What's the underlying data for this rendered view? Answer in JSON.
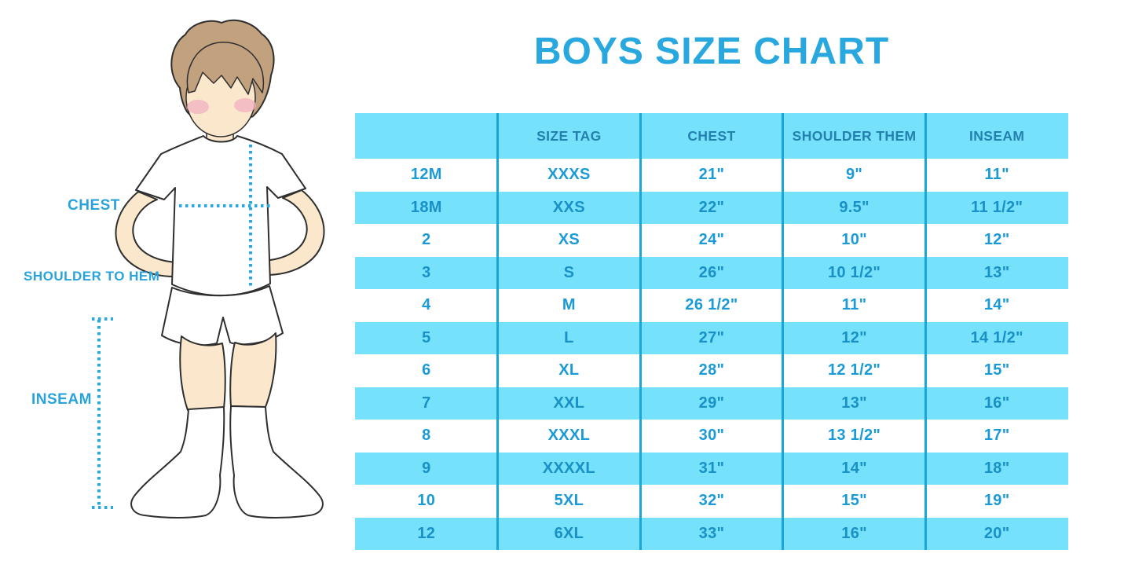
{
  "title": "BOYS SIZE CHART",
  "colors": {
    "accent_blue": "#29A8E0",
    "table_cyan": "#75E1FA",
    "divider_blue": "#1BA6DA",
    "header_text": "#2380AF",
    "row_text": "#1A9BD7"
  },
  "figure": {
    "labels": {
      "chest": "CHEST",
      "shoulder_to_hem": "SHOULDER TO HEM",
      "inseam": "INSEAM"
    }
  },
  "chart_data": {
    "type": "table",
    "title": "BOYS SIZE CHART",
    "columns": [
      "",
      "SIZE TAG",
      "CHEST",
      "SHOULDER THEM",
      "INSEAM"
    ],
    "rows": [
      [
        "12M",
        "XXXS",
        "21\"",
        "9\"",
        "11\""
      ],
      [
        "18M",
        "XXS",
        "22\"",
        "9.5\"",
        "11 1/2\""
      ],
      [
        "2",
        "XS",
        "24\"",
        "10\"",
        "12\""
      ],
      [
        "3",
        "S",
        "26\"",
        "10 1/2\"",
        "13\""
      ],
      [
        "4",
        "M",
        "26 1/2\"",
        "11\"",
        "14\""
      ],
      [
        "5",
        "L",
        "27\"",
        "12\"",
        "14 1/2\""
      ],
      [
        "6",
        "XL",
        "28\"",
        "12 1/2\"",
        "15\""
      ],
      [
        "7",
        "XXL",
        "29\"",
        "13\"",
        "16\""
      ],
      [
        "8",
        "XXXL",
        "30\"",
        "13 1/2\"",
        "17\""
      ],
      [
        "9",
        "XXXXL",
        "31\"",
        "14\"",
        "18\""
      ],
      [
        "10",
        "5XL",
        "32\"",
        "15\"",
        "19\""
      ],
      [
        "12",
        "6XL",
        "33\"",
        "16\"",
        "20\""
      ]
    ]
  }
}
